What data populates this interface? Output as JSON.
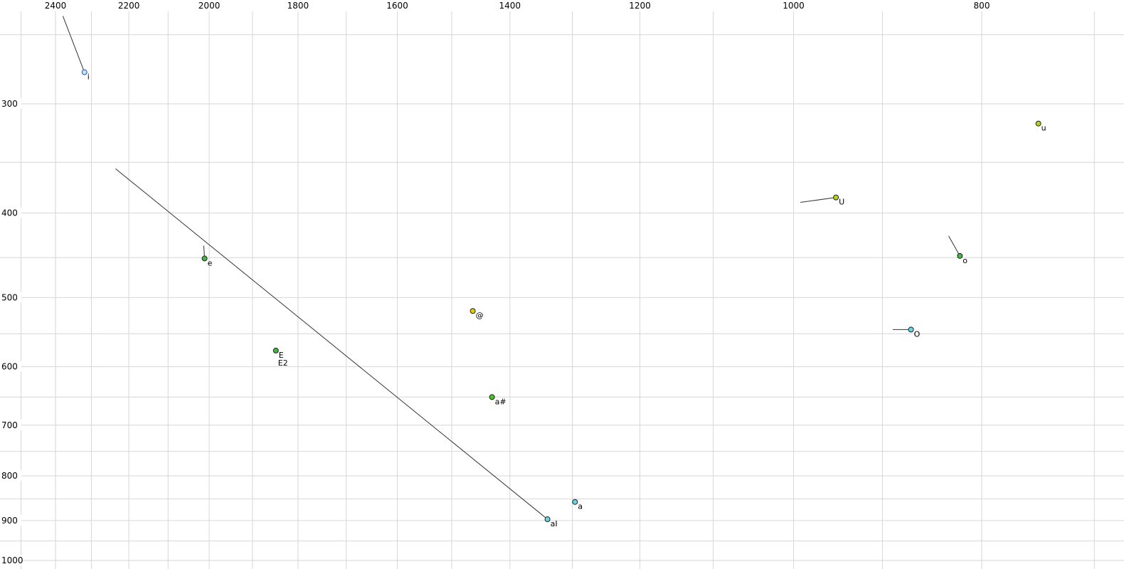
{
  "chart_data": {
    "type": "scatter",
    "title": "",
    "x_axis": {
      "tick_labels": [
        "2400",
        "2200",
        "2000",
        "1800",
        "1600",
        "1400",
        "1200",
        "1000",
        "800"
      ],
      "tick_values": [
        2400,
        2200,
        2000,
        1800,
        1600,
        1400,
        1200,
        1000,
        800
      ],
      "scale": "log",
      "direction": "decreasing-rightward",
      "gridline_values": [
        2500,
        2400,
        2300,
        2200,
        2100,
        2000,
        1900,
        1800,
        1700,
        1600,
        1500,
        1400,
        1300,
        1200,
        1100,
        1000,
        900,
        800,
        700
      ]
    },
    "y_axis": {
      "tick_labels": [
        "300",
        "400",
        "500",
        "600",
        "700",
        "800",
        "900",
        "1000"
      ],
      "tick_values": [
        300,
        400,
        500,
        600,
        700,
        800,
        900,
        1000
      ],
      "scale": "log",
      "direction": "increasing-downward",
      "gridline_values": [
        250,
        300,
        350,
        400,
        450,
        500,
        550,
        600,
        650,
        700,
        750,
        800,
        850,
        900,
        950,
        1000
      ]
    },
    "grid": true,
    "legend": false,
    "points": [
      {
        "label": "i",
        "f2": 2319,
        "f1": 276,
        "fill": "#bfe4f5",
        "stroke": "#2a52be",
        "tail": {
          "f2": 2379,
          "f1": 238
        }
      },
      {
        "label": "u",
        "f2": 748,
        "f1": 316,
        "fill": "#b4d414",
        "stroke": "#222222"
      },
      {
        "label": "U",
        "f2": 951,
        "f1": 384,
        "fill": "#b4d414",
        "stroke": "#222222",
        "tail": {
          "f2": 992,
          "f1": 389
        }
      },
      {
        "label": "o",
        "f2": 821,
        "f1": 448,
        "fill": "#3dbb3d",
        "stroke": "#222222",
        "tail": {
          "f2": 832,
          "f1": 425
        }
      },
      {
        "label": "e",
        "f2": 2011,
        "f1": 451,
        "fill": "#3dbb3d",
        "stroke": "#222222",
        "tail": {
          "f2": 2013,
          "f1": 436
        }
      },
      {
        "label": "@",
        "f2": 1463,
        "f1": 518,
        "fill": "#e0cc00",
        "stroke": "#222222"
      },
      {
        "label": "O",
        "f2": 870,
        "f1": 544,
        "fill": "#63d8e6",
        "stroke": "#222222",
        "tail": {
          "f2": 889,
          "f1": 544
        }
      },
      {
        "label": "E",
        "f2": 1848,
        "f1": 575,
        "fill": "#3dbb3d",
        "stroke": "#222222",
        "sublabel": "E2"
      },
      {
        "label": "a#",
        "f2": 1430,
        "f1": 650,
        "fill": "#46c81e",
        "stroke": "#222222"
      },
      {
        "label": "a",
        "f2": 1296,
        "f1": 857,
        "fill": "#63d8e6",
        "stroke": "#222222"
      },
      {
        "label": "aI",
        "f2": 1339,
        "f1": 897,
        "fill": "#63d8e6",
        "stroke": "#222222",
        "tail": {
          "f2": 2235,
          "f1": 356
        }
      }
    ]
  },
  "colors": {
    "background": "#ffffff",
    "grid": "#d6d6d6",
    "axis_text": "#000000",
    "point_stroke": "#222222",
    "trajectory": "#333333"
  }
}
